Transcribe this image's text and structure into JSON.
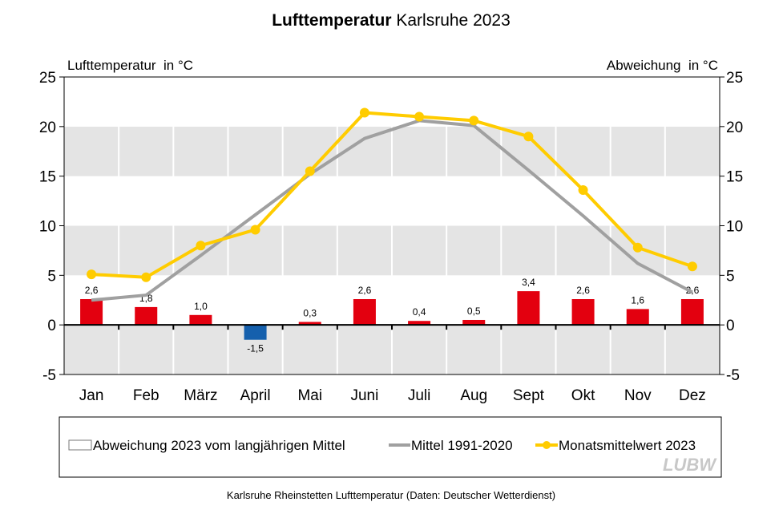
{
  "chart_data": {
    "type": "bar+line",
    "title_bold": "Lufttemperatur",
    "title_rest": " Karlsruhe 2023",
    "ylabel_left": "Lufttemperatur  in °C",
    "ylabel_right": "Abweichung  in °C",
    "ylim": [
      -5,
      25
    ],
    "yticks": [
      -5,
      0,
      5,
      10,
      15,
      20,
      25
    ],
    "grid": "alternating horizontal bands",
    "categories": [
      "Jan",
      "Feb",
      "März",
      "April",
      "Mai",
      "Juni",
      "Juli",
      "Aug",
      "Sept",
      "Okt",
      "Nov",
      "Dez"
    ],
    "series": [
      {
        "name": "Abweichung 2023 vom langjährigen Mittel",
        "type": "bar",
        "values": [
          2.6,
          1.8,
          1.0,
          -1.5,
          0.3,
          2.6,
          0.4,
          0.5,
          3.4,
          2.6,
          1.6,
          2.6
        ],
        "labels": [
          "2,6",
          "1,8",
          "1,0",
          "-1,5",
          "0,3",
          "2,6",
          "0,4",
          "0,5",
          "3,4",
          "2,6",
          "1,6",
          "2,6"
        ],
        "color_positive": "#e3000f",
        "color_negative": "#1560ad"
      },
      {
        "name": "Mittel 1991-2020",
        "type": "line",
        "values": [
          2.5,
          3.0,
          7.0,
          11.1,
          15.2,
          18.8,
          20.6,
          20.1,
          15.6,
          11.0,
          6.2,
          3.3
        ],
        "color": "#a0a0a0"
      },
      {
        "name": "Monatsmittelwert 2023",
        "type": "line",
        "values": [
          5.1,
          4.8,
          8.0,
          9.6,
          15.5,
          21.4,
          21.0,
          20.6,
          19.0,
          13.6,
          7.8,
          5.9
        ],
        "color": "#ffcc00"
      }
    ],
    "legend_position": "bottom",
    "source": "Karlsruhe Rheinstetten Lufttemperatur (Daten: Deutscher Wetterdienst)",
    "logo": "LUBW"
  }
}
